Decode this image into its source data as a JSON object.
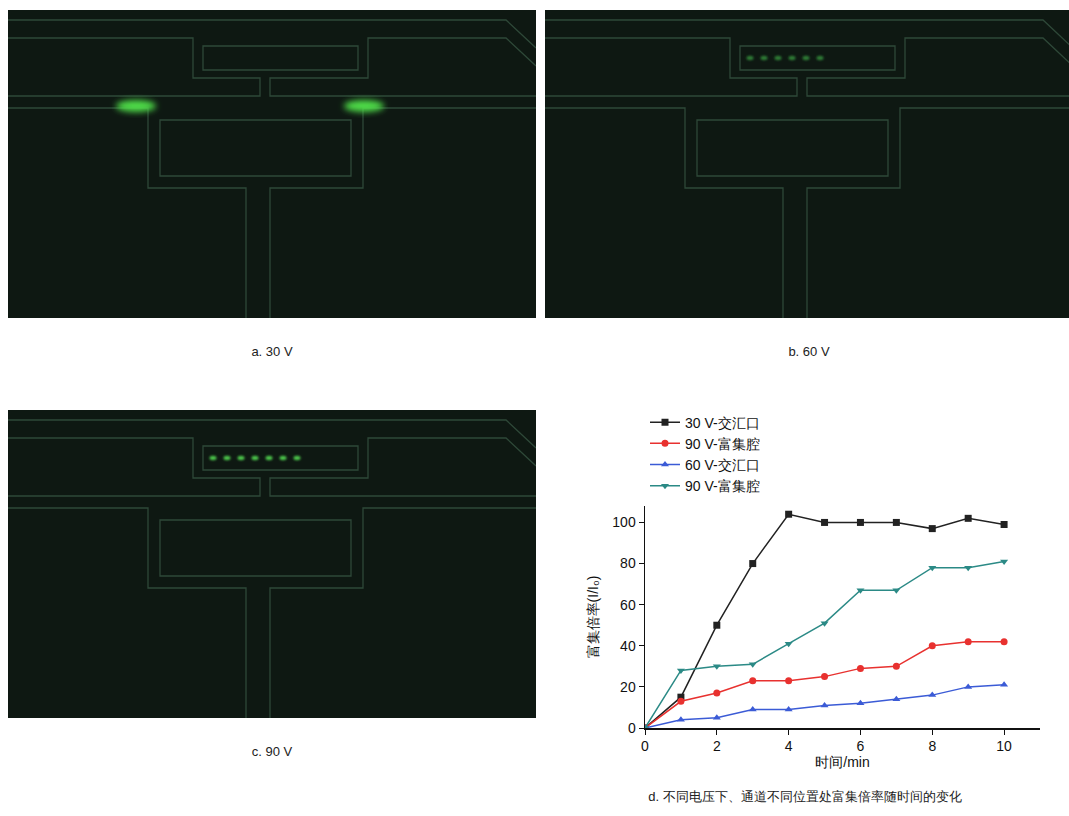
{
  "images": [
    {
      "caption": "a. 30 V"
    },
    {
      "caption": "b. 60 V"
    },
    {
      "caption": "c. 90 V"
    }
  ],
  "chart_data": {
    "type": "line",
    "caption": "d. 不同电压下、通道不同位置处富集倍率随时间的变化",
    "x_label": "时间/min",
    "y_label": "富集倍率(I/I₀)",
    "x": [
      0,
      1,
      2,
      3,
      4,
      5,
      6,
      7,
      8,
      9,
      10
    ],
    "series": [
      {
        "name": "30 V-交汇口",
        "color": "#222222",
        "marker": "square",
        "values": [
          0,
          15,
          50,
          80,
          104,
          100,
          100,
          100,
          97,
          102,
          99
        ]
      },
      {
        "name": "90 V-富集腔",
        "color": "#e8312f",
        "marker": "circle",
        "values": [
          0,
          13,
          17,
          23,
          23,
          25,
          29,
          30,
          40,
          42,
          42
        ]
      },
      {
        "name": "60 V-交汇口",
        "color": "#3b5bd6",
        "marker": "triangle-up",
        "values": [
          0,
          4,
          5,
          9,
          9,
          11,
          12,
          14,
          16,
          20,
          21
        ]
      },
      {
        "name": "90 V-富集腔",
        "color": "#2b8a86",
        "marker": "triangle-down",
        "values": [
          0,
          28,
          30,
          31,
          41,
          51,
          67,
          67,
          78,
          78,
          81
        ]
      }
    ],
    "xlim": [
      0,
      11
    ],
    "ylim": [
      0,
      108
    ],
    "xticks": [
      0,
      2,
      4,
      6,
      8,
      10
    ],
    "yticks": [
      0,
      20,
      40,
      60,
      80,
      100
    ],
    "grid": false,
    "legend": "top"
  }
}
